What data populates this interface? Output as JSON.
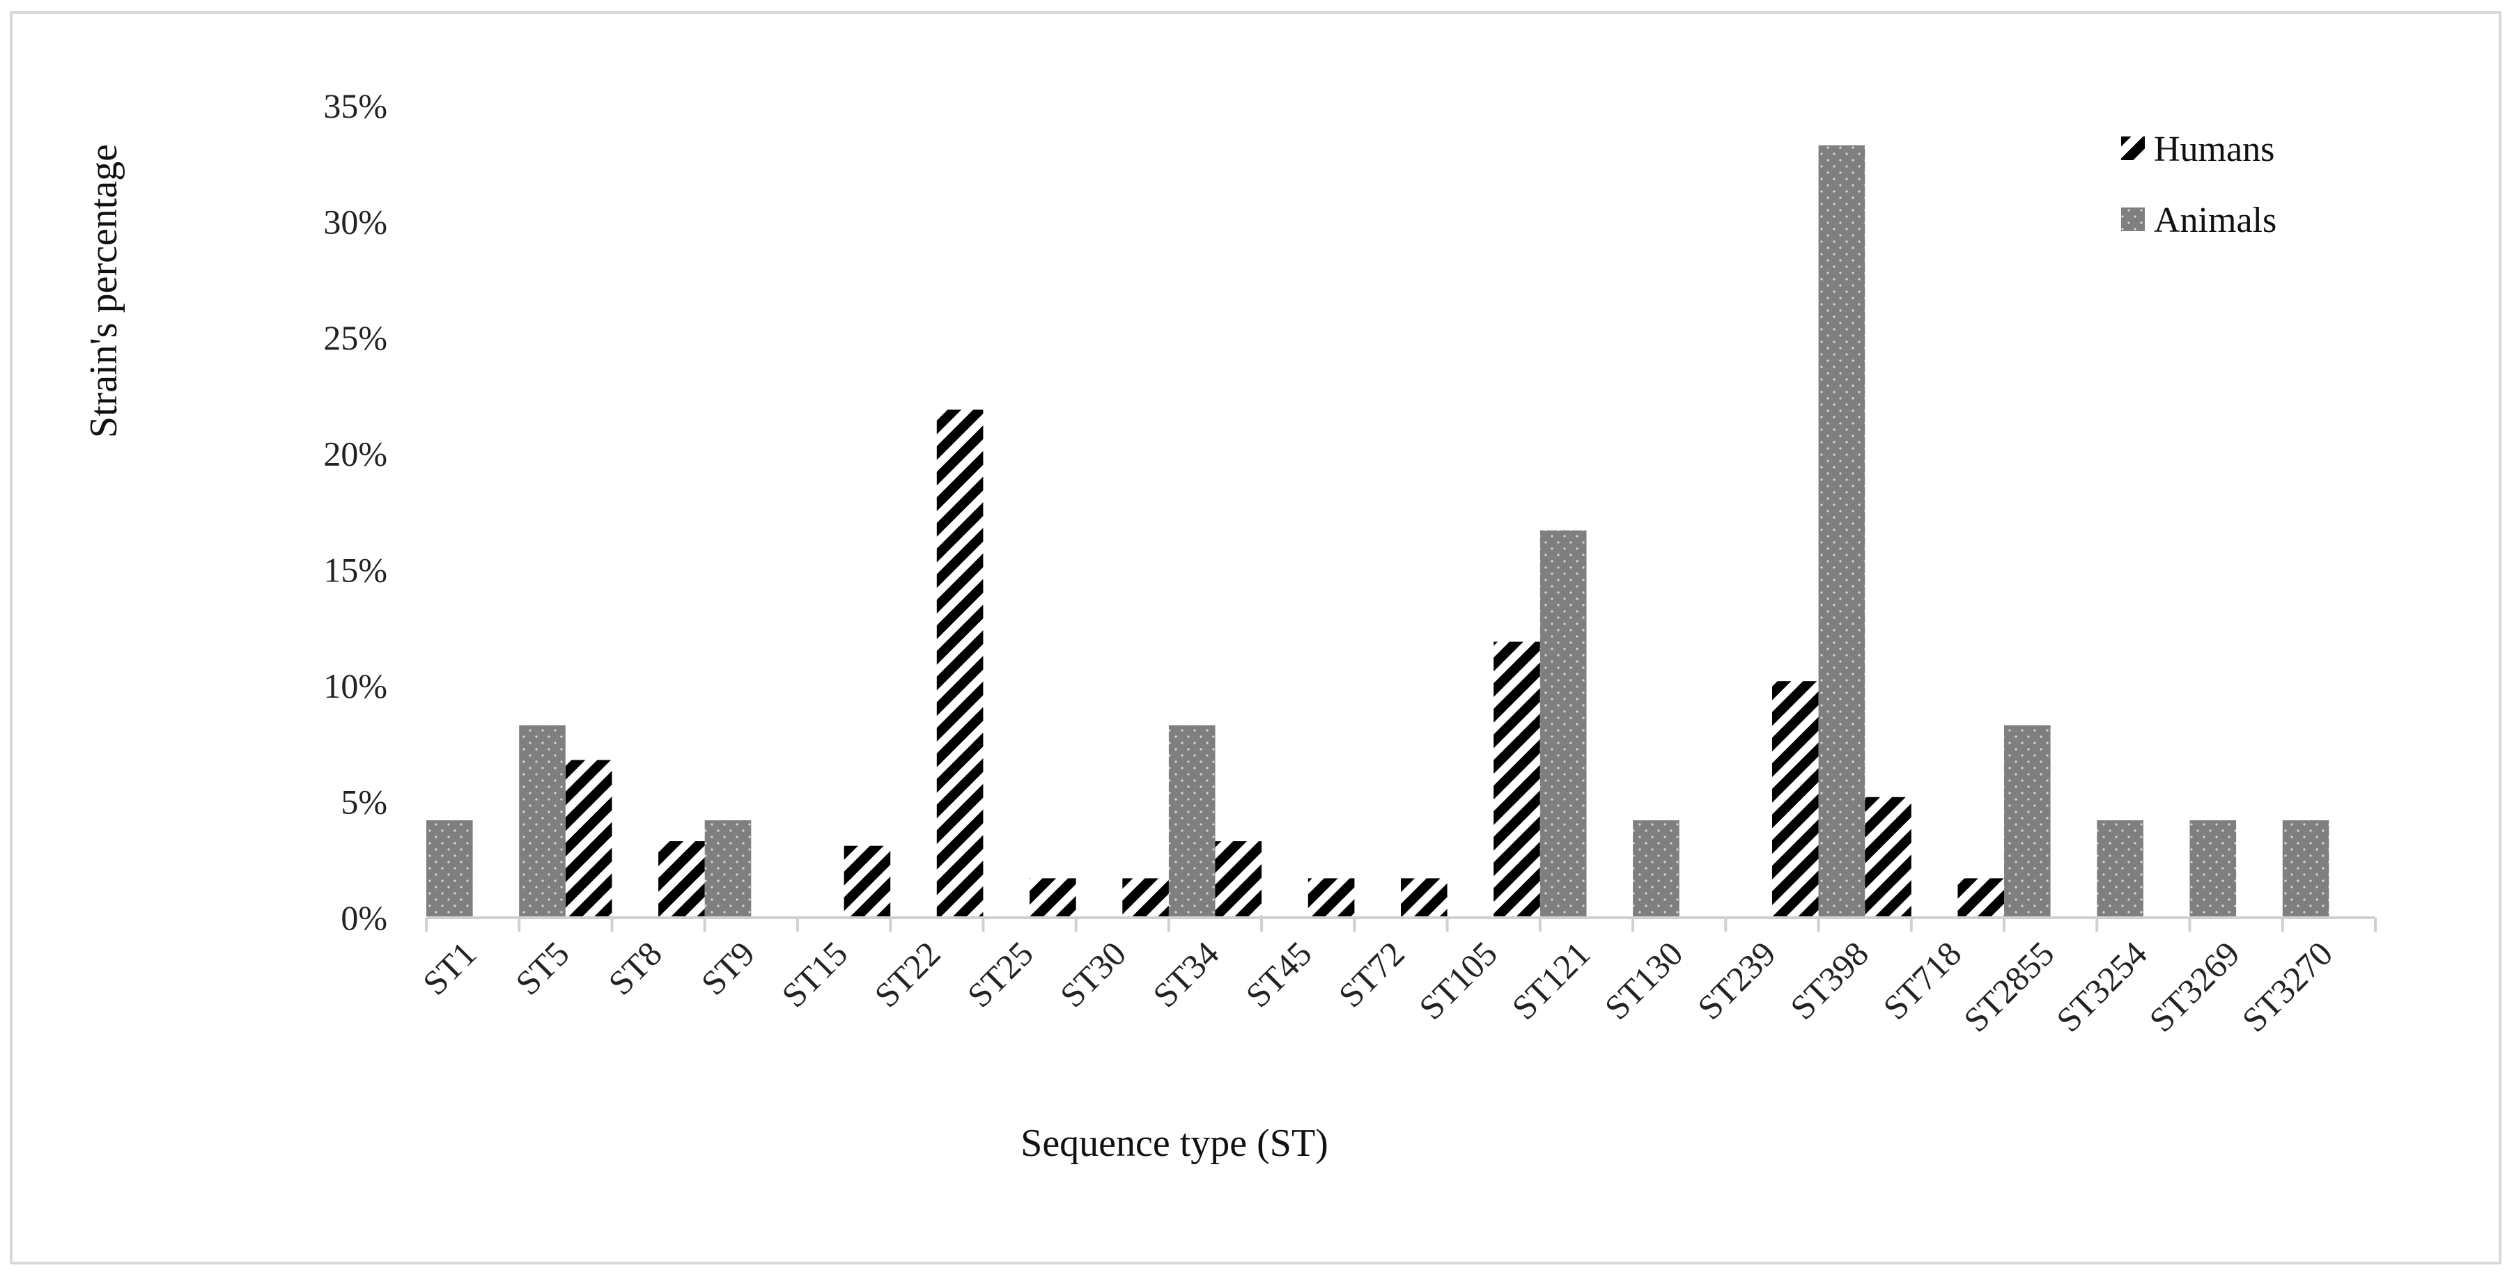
{
  "chart_data": {
    "type": "bar",
    "title": "",
    "xlabel": "Sequence type (ST)",
    "ylabel": "Strain's percentage",
    "ylim": [
      0,
      35
    ],
    "yticks": [
      "0%",
      "5%",
      "10%",
      "15%",
      "20%",
      "25%",
      "30%",
      "35%"
    ],
    "categories": [
      "ST1",
      "ST5",
      "ST8",
      "ST9",
      "ST15",
      "ST22",
      "ST25",
      "ST30",
      "ST34",
      "ST45",
      "ST72",
      "ST105",
      "ST121",
      "ST130",
      "ST239",
      "ST398",
      "ST718",
      "ST2855",
      "ST3254",
      "ST3269",
      "ST3270"
    ],
    "series": [
      {
        "name": "Humans",
        "pattern": "diagonal-stripes",
        "color": "#000000",
        "values": [
          0,
          6.8,
          3.3,
          0,
          3.1,
          21.9,
          1.7,
          1.7,
          3.3,
          1.7,
          1.7,
          11.9,
          0,
          0,
          10.2,
          5.2,
          1.7,
          0,
          0,
          0,
          0
        ]
      },
      {
        "name": "Animals",
        "pattern": "dotted-gray",
        "color": "#808080",
        "values": [
          4.2,
          8.3,
          0,
          4.2,
          0,
          0,
          0,
          0,
          8.3,
          0,
          0,
          0,
          16.7,
          4.2,
          0,
          33.3,
          0,
          8.3,
          4.2,
          4.2,
          4.2
        ]
      }
    ],
    "legend_position": "top-right",
    "grid": false
  }
}
